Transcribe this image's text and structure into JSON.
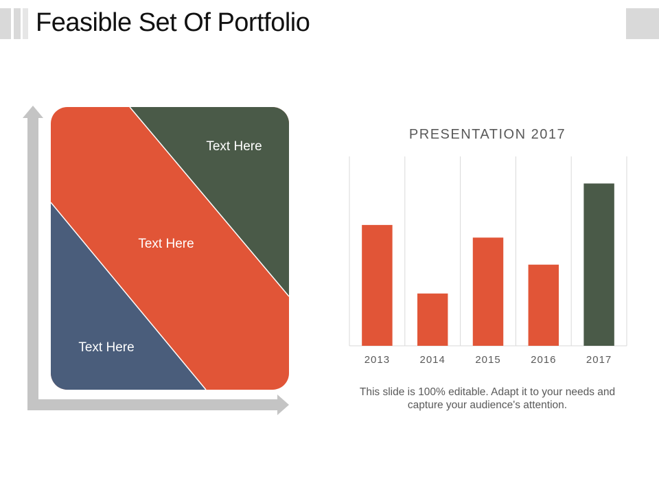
{
  "slide": {
    "title": "Feasible Set Of Portfolio",
    "caption": "This slide is 100% editable. Adapt it to your needs and capture your audience's attention."
  },
  "diagram": {
    "regions": [
      {
        "label": "Text Here",
        "color": "#4a5d7b",
        "position": "bottom-left"
      },
      {
        "label": "Text Here",
        "color": "#e15537",
        "position": "middle"
      },
      {
        "label": "Text Here",
        "color": "#4a5a48",
        "position": "top-right"
      }
    ],
    "axis_color": "#c4c4c4"
  },
  "chart_data": {
    "type": "bar",
    "title": "PRESENTATION 2017",
    "categories": [
      "2013",
      "2014",
      "2015",
      "2016",
      "2017"
    ],
    "values": [
      67,
      29,
      60,
      45,
      90
    ],
    "colors": [
      "#e15537",
      "#e15537",
      "#e15537",
      "#e15537",
      "#4a5a48"
    ],
    "ylim": [
      0,
      105
    ],
    "grid": "vertical",
    "xlabel": "",
    "ylabel": ""
  }
}
